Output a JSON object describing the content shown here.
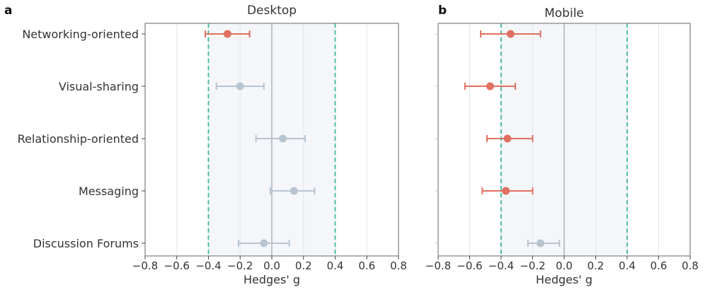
{
  "figure": {
    "categories": [
      "Networking-oriented",
      "Visual-sharing",
      "Relationship-oriented",
      "Messaging",
      "Discussion Forums"
    ],
    "significant_color": "#e07060",
    "nonsignificant_color": "#b8c4cf",
    "threshold_color": "#4fbf9f",
    "shade_color": "#f4f6fa"
  },
  "chart_data": [
    {
      "type": "scatter",
      "panel_label": "a",
      "title": "Desktop",
      "xlabel": "Hedges' g",
      "xlim": [
        -0.8,
        0.8
      ],
      "xticks": [
        "−0.8",
        "−0.6",
        "−0.4",
        "−0.2",
        "0.0",
        "0.2",
        "0.4",
        "0.6",
        "0.8"
      ],
      "thresholds": [
        -0.4,
        0.4
      ],
      "grid": true,
      "points": [
        {
          "category": "Networking-oriented",
          "g": -0.28,
          "ci": [
            -0.42,
            -0.14
          ],
          "significant": true
        },
        {
          "category": "Visual-sharing",
          "g": -0.2,
          "ci": [
            -0.35,
            -0.05
          ],
          "significant": false
        },
        {
          "category": "Relationship-oriented",
          "g": 0.07,
          "ci": [
            -0.1,
            0.21
          ],
          "significant": false
        },
        {
          "category": "Messaging",
          "g": 0.14,
          "ci": [
            -0.01,
            0.27
          ],
          "significant": false
        },
        {
          "category": "Discussion Forums",
          "g": -0.05,
          "ci": [
            -0.21,
            0.11
          ],
          "significant": false
        }
      ]
    },
    {
      "type": "scatter",
      "panel_label": "b",
      "title": "Mobile",
      "xlabel": "Hedges' g",
      "xlim": [
        -0.8,
        0.8
      ],
      "xticks": [
        "−0.8",
        "−0.6",
        "−0.4",
        "−0.2",
        "0.0",
        "0.2",
        "0.4",
        "0.6",
        "0.8"
      ],
      "thresholds": [
        -0.4,
        0.4
      ],
      "grid": true,
      "points": [
        {
          "category": "Networking-oriented",
          "g": -0.34,
          "ci": [
            -0.53,
            -0.15
          ],
          "significant": true
        },
        {
          "category": "Visual-sharing",
          "g": -0.47,
          "ci": [
            -0.63,
            -0.31
          ],
          "significant": true
        },
        {
          "category": "Relationship-oriented",
          "g": -0.36,
          "ci": [
            -0.49,
            -0.2
          ],
          "significant": true
        },
        {
          "category": "Messaging",
          "g": -0.37,
          "ci": [
            -0.52,
            -0.2
          ],
          "significant": true
        },
        {
          "category": "Discussion Forums",
          "g": -0.15,
          "ci": [
            -0.23,
            -0.03
          ],
          "significant": false
        }
      ]
    }
  ]
}
